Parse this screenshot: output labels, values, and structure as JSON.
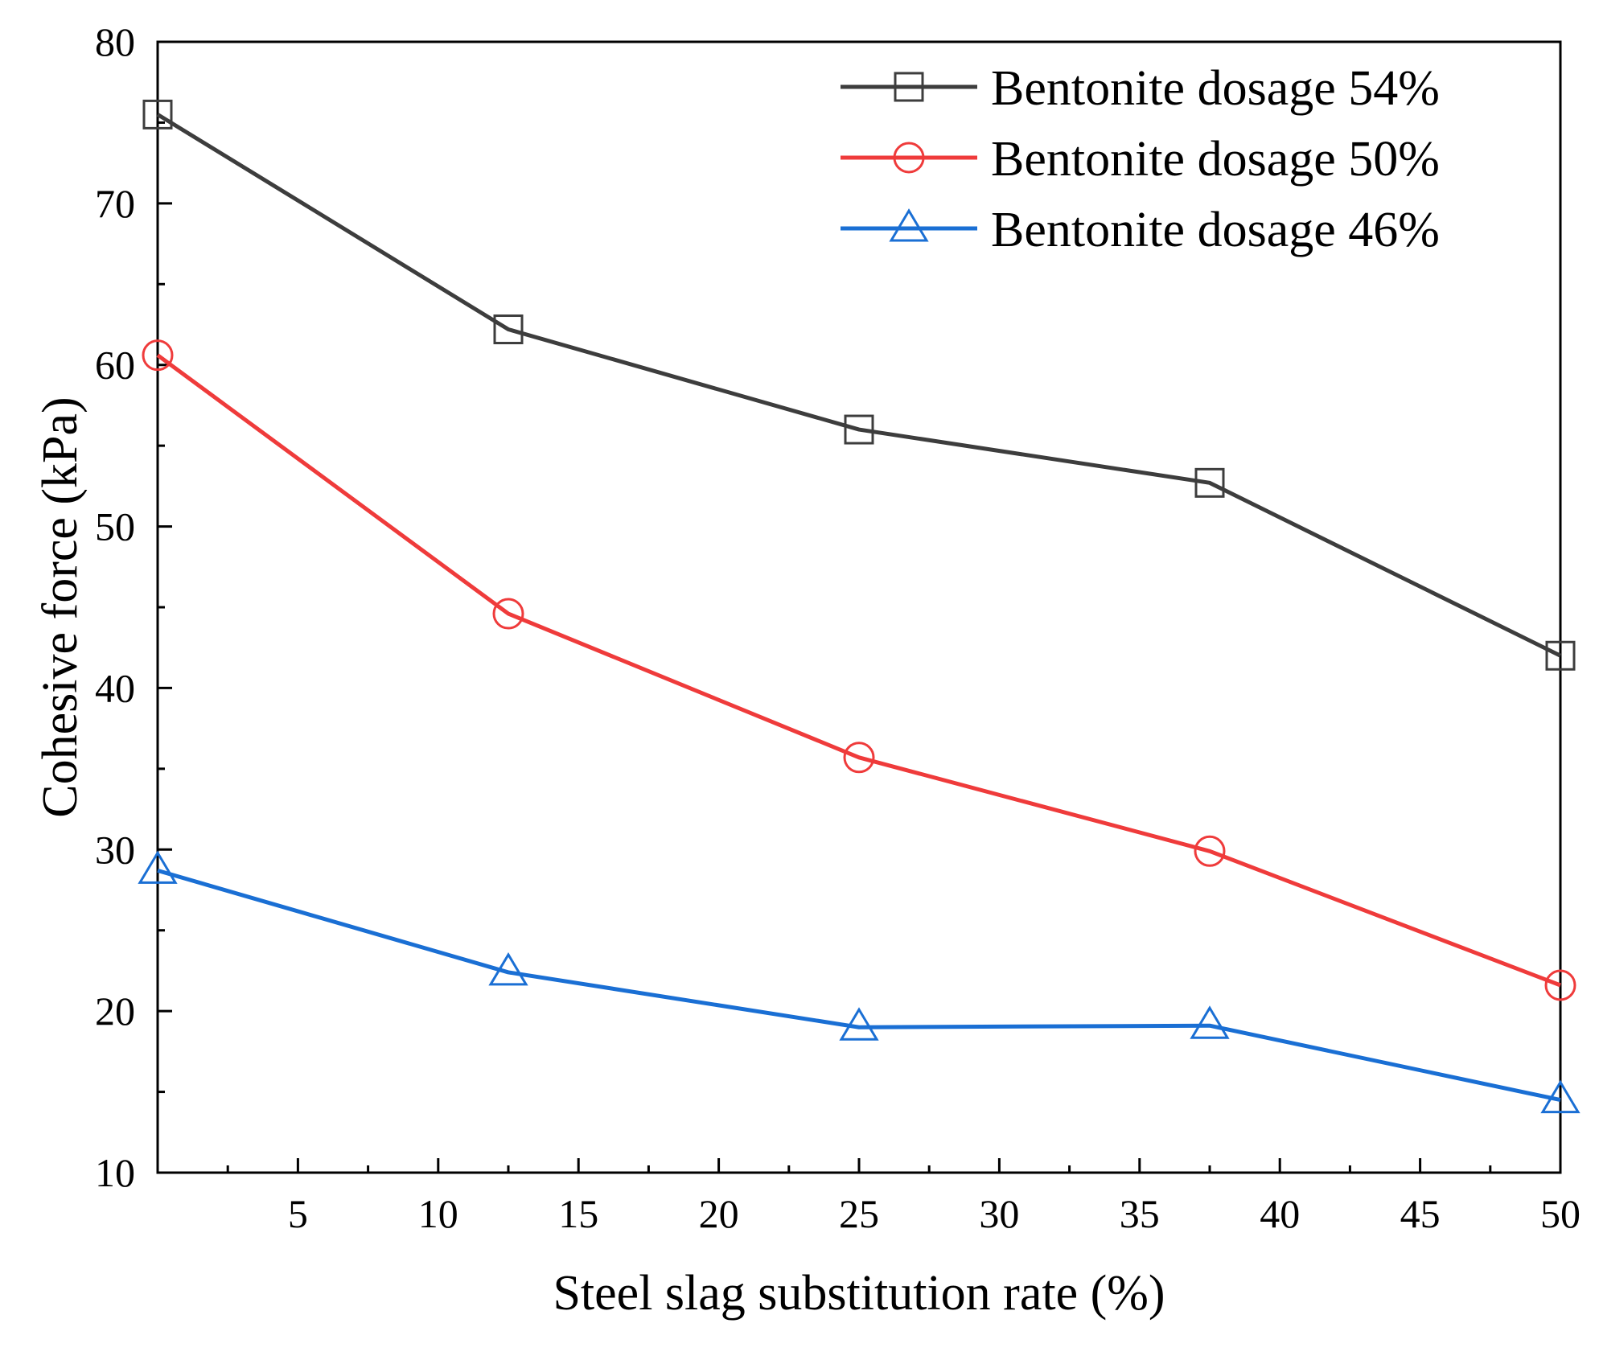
{
  "chart_data": {
    "type": "line",
    "title": "",
    "xlabel": "Steel slag substitution rate (%)",
    "ylabel": "Cohesive force (kPa)",
    "xlim": [
      0,
      50
    ],
    "ylim": [
      10,
      80
    ],
    "x_ticks": [
      5,
      10,
      15,
      20,
      25,
      30,
      35,
      40,
      45,
      50
    ],
    "y_ticks": [
      10,
      20,
      30,
      40,
      50,
      60,
      70,
      80
    ],
    "x": [
      0,
      12.5,
      25,
      37.5,
      50
    ],
    "series": [
      {
        "name": "Bentonite dosage 54%",
        "color": "#3d3d3d",
        "marker": "square",
        "values": [
          75.5,
          62.2,
          56.0,
          52.7,
          42.0
        ]
      },
      {
        "name": "Bentonite dosage 50%",
        "color": "#ef3b3b",
        "marker": "circle",
        "values": [
          60.6,
          44.6,
          35.7,
          29.9,
          21.6
        ]
      },
      {
        "name": "Bentonite dosage 46%",
        "color": "#1a6fd4",
        "marker": "triangle",
        "values": [
          28.7,
          22.4,
          19.0,
          19.1,
          14.5
        ]
      }
    ],
    "legend_position": "top-right",
    "grid": false
  }
}
